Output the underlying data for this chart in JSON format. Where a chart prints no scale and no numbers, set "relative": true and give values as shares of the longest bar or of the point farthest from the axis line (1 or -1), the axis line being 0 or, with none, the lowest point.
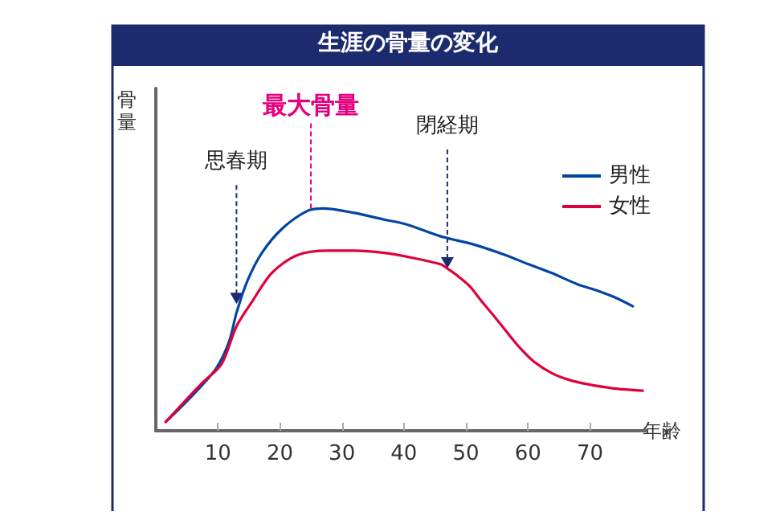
{
  "chart_data": {
    "type": "line",
    "title": "生涯の骨量の変化",
    "xlabel": "年齢",
    "ylabel": "骨量",
    "relative": true,
    "xlim": [
      0,
      79
    ],
    "xticks": [
      10,
      20,
      30,
      40,
      50,
      60,
      70
    ],
    "legend": "top right",
    "grid": false,
    "marker": "none",
    "line_style": "solid",
    "series": [
      {
        "name": "男性",
        "color": "#0046a0",
        "x": [
          1.6,
          5.6,
          9.7,
          11.8,
          13,
          14.7,
          17.1,
          20.4,
          24.5,
          27,
          32,
          36.8,
          40.2,
          46.5,
          51,
          56.4,
          60,
          63.8,
          67.9,
          71.2,
          74,
          76.9
        ],
        "values": [
          0.04,
          0.15,
          0.28,
          0.4,
          0.53,
          0.67,
          0.8,
          0.91,
          0.99,
          1,
          0.98,
          0.95,
          0.93,
          0.87,
          0.84,
          0.79,
          0.75,
          0.71,
          0.66,
          0.63,
          0.6,
          0.56
        ]
      },
      {
        "name": "女性",
        "color": "#e0003c",
        "x": [
          1.6,
          7.3,
          10.6,
          13,
          15.5,
          18.7,
          22.8,
          27.8,
          32,
          36.8,
          41,
          45.8,
          46.5,
          48.5,
          50.6,
          52.6,
          54.7,
          56.7,
          58.8,
          61,
          63.8,
          66.5,
          69.5,
          74,
          78.5
        ],
        "values": [
          0.04,
          0.21,
          0.3,
          0.47,
          0.58,
          0.71,
          0.79,
          0.81,
          0.81,
          0.8,
          0.78,
          0.75,
          0.74,
          0.7,
          0.65,
          0.58,
          0.51,
          0.44,
          0.37,
          0.31,
          0.26,
          0.23,
          0.21,
          0.19,
          0.18
        ]
      }
    ],
    "ref_lines": [
      {
        "axis": "x",
        "value": 25,
        "label": "最大骨量",
        "color": "#e6007e",
        "line_style": "dashed"
      }
    ],
    "annotations": [
      {
        "text": "思春期",
        "x": 13,
        "y": 0.57
      },
      {
        "text": "閉経期",
        "x": 47,
        "y": 0.73
      }
    ]
  }
}
